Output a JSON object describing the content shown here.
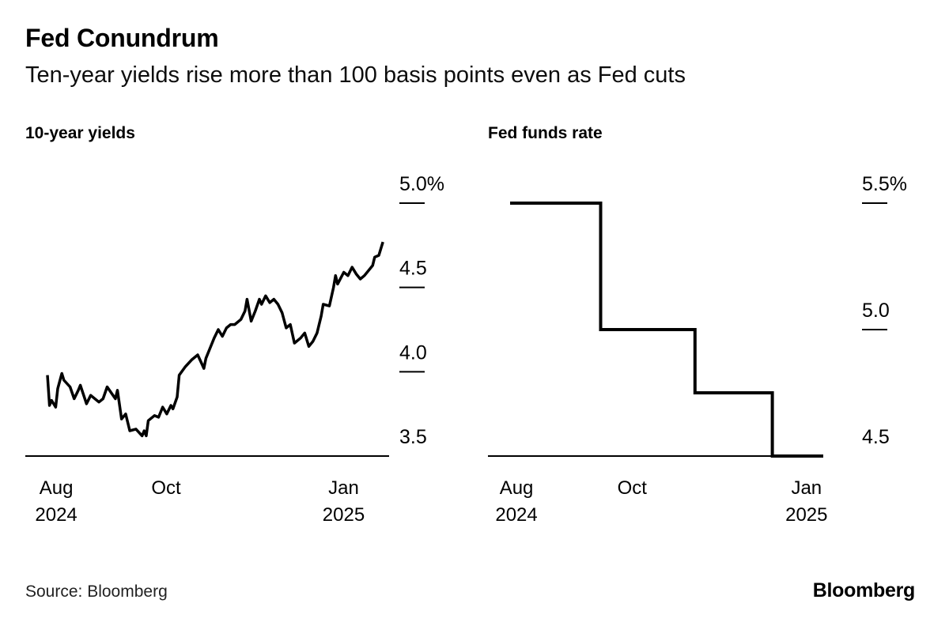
{
  "header": {
    "title": "Fed Conundrum",
    "subtitle": "Ten-year yields rise more than 100 basis points even as Fed cuts"
  },
  "footer": {
    "source": "Source: Bloomberg",
    "brand": "Bloomberg"
  },
  "colors": {
    "background": "#ffffff",
    "line": "#000000",
    "axis": "#000000",
    "tick": "#000000",
    "text": "#000000"
  },
  "chart_data": [
    {
      "type": "line",
      "title": "10-year yields",
      "unit": "percent",
      "x_unit": "days since Aug 1, 2024",
      "x_domain": [
        0,
        166
      ],
      "ylim": [
        3.5,
        5.0
      ],
      "grid": false,
      "legend": "none",
      "y_ticks": [
        {
          "value": 5.0,
          "label": "5.0%"
        },
        {
          "value": 4.5,
          "label": "4.5"
        },
        {
          "value": 4.0,
          "label": "4.0"
        },
        {
          "value": 3.5,
          "label": "3.5"
        }
      ],
      "x_ticks": [
        {
          "frac": 0.085,
          "lines": [
            "Aug",
            "2024"
          ]
        },
        {
          "frac": 0.387,
          "lines": [
            "Oct"
          ]
        },
        {
          "frac": 0.875,
          "lines": [
            "Jan",
            "2025"
          ]
        }
      ],
      "stroke_width": 3.5,
      "points": [
        [
          0,
          3.98
        ],
        [
          1,
          3.8
        ],
        [
          2,
          3.83
        ],
        [
          4,
          3.79
        ],
        [
          5,
          3.9
        ],
        [
          7,
          3.99
        ],
        [
          8,
          3.95
        ],
        [
          11,
          3.91
        ],
        [
          13,
          3.84
        ],
        [
          15,
          3.89
        ],
        [
          16,
          3.92
        ],
        [
          19,
          3.81
        ],
        [
          21,
          3.86
        ],
        [
          25,
          3.82
        ],
        [
          27,
          3.84
        ],
        [
          29,
          3.91
        ],
        [
          33,
          3.84
        ],
        [
          34,
          3.89
        ],
        [
          36,
          3.72
        ],
        [
          38,
          3.75
        ],
        [
          40,
          3.65
        ],
        [
          43,
          3.66
        ],
        [
          46,
          3.62
        ],
        [
          47,
          3.65
        ],
        [
          48,
          3.62
        ],
        [
          49,
          3.71
        ],
        [
          52,
          3.74
        ],
        [
          54,
          3.73
        ],
        [
          56,
          3.79
        ],
        [
          58,
          3.75
        ],
        [
          60,
          3.8
        ],
        [
          61,
          3.78
        ],
        [
          63,
          3.85
        ],
        [
          64,
          3.98
        ],
        [
          67,
          4.03
        ],
        [
          70,
          4.07
        ],
        [
          73,
          4.1
        ],
        [
          76,
          4.02
        ],
        [
          77,
          4.08
        ],
        [
          80,
          4.17
        ],
        [
          81,
          4.2
        ],
        [
          83,
          4.25
        ],
        [
          85,
          4.21
        ],
        [
          87,
          4.26
        ],
        [
          89,
          4.28
        ],
        [
          91,
          4.28
        ],
        [
          94,
          4.31
        ],
        [
          96,
          4.36
        ],
        [
          97,
          4.43
        ],
        [
          99,
          4.3
        ],
        [
          101,
          4.36
        ],
        [
          103,
          4.43
        ],
        [
          104,
          4.4
        ],
        [
          106,
          4.45
        ],
        [
          108,
          4.41
        ],
        [
          110,
          4.43
        ],
        [
          112,
          4.4
        ],
        [
          114,
          4.35
        ],
        [
          116,
          4.26
        ],
        [
          118,
          4.28
        ],
        [
          120,
          4.17
        ],
        [
          123,
          4.2
        ],
        [
          125,
          4.23
        ],
        [
          127,
          4.15
        ],
        [
          129,
          4.18
        ],
        [
          131,
          4.23
        ],
        [
          133,
          4.33
        ],
        [
          134,
          4.4
        ],
        [
          137,
          4.39
        ],
        [
          139,
          4.5
        ],
        [
          140,
          4.57
        ],
        [
          141,
          4.52
        ],
        [
          144,
          4.59
        ],
        [
          146,
          4.57
        ],
        [
          148,
          4.62
        ],
        [
          150,
          4.58
        ],
        [
          152,
          4.55
        ],
        [
          154,
          4.57
        ],
        [
          156,
          4.6
        ],
        [
          158,
          4.63
        ],
        [
          159,
          4.68
        ],
        [
          161,
          4.69
        ],
        [
          163,
          4.77
        ]
      ]
    },
    {
      "type": "step",
      "title": "Fed funds rate",
      "unit": "percent",
      "x_unit": "days since Aug 1, 2024",
      "x_domain": [
        0,
        166
      ],
      "ylim": [
        4.5,
        5.5
      ],
      "grid": false,
      "legend": "none",
      "y_ticks": [
        {
          "value": 5.5,
          "label": "5.5%"
        },
        {
          "value": 5.0,
          "label": "5.0"
        },
        {
          "value": 4.5,
          "label": "4.5"
        }
      ],
      "x_ticks": [
        {
          "frac": 0.085,
          "lines": [
            "Aug",
            "2024"
          ]
        },
        {
          "frac": 0.43,
          "lines": [
            "Oct"
          ]
        },
        {
          "frac": 0.95,
          "lines": [
            "Jan",
            "2025"
          ]
        }
      ],
      "stroke_width": 4,
      "levels": [
        {
          "period": "Aug to mid-Sep 2024",
          "value": 5.5
        },
        {
          "period": "mid-Sep to early Nov 2024",
          "value": 5.0
        },
        {
          "period": "early Nov to mid-Dec 2024",
          "value": 4.75
        },
        {
          "period": "mid-Dec 2024 to Jan 2025",
          "value": 4.5
        }
      ],
      "points": [
        [
          0,
          5.5
        ],
        [
          48,
          5.5
        ],
        [
          48,
          5.0
        ],
        [
          98,
          5.0
        ],
        [
          98,
          4.75
        ],
        [
          139,
          4.75
        ],
        [
          139,
          4.5
        ],
        [
          166,
          4.5
        ]
      ]
    }
  ]
}
